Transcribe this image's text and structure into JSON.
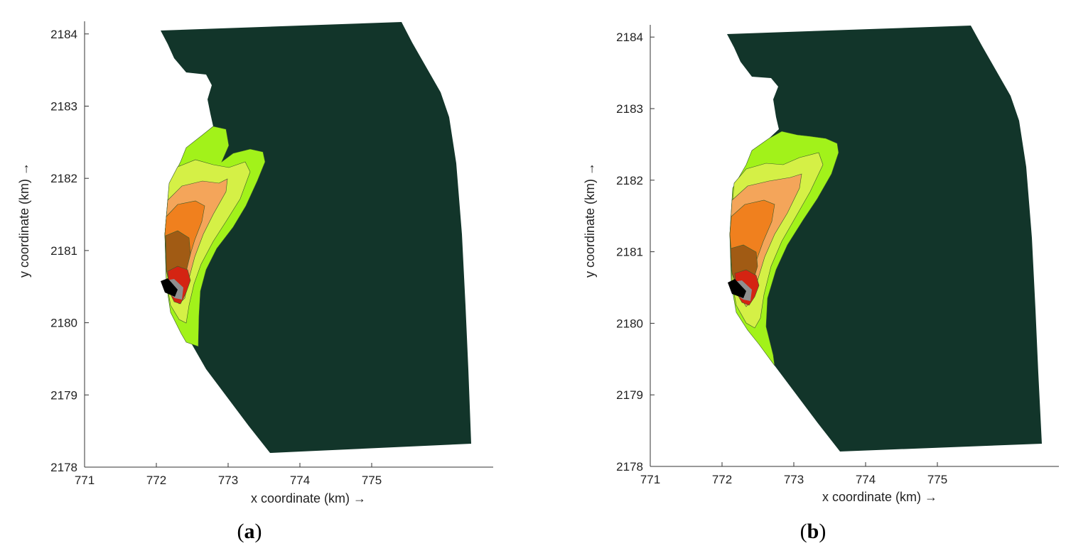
{
  "chart_data": [
    {
      "type": "heatmap",
      "panel_label": "a",
      "xlabel": "x coordinate (km) →",
      "ylabel": "y coordinate (km) →",
      "xlim": [
        771,
        775.5
      ],
      "ylim": [
        2178,
        2184.2
      ],
      "xticks": [
        "771",
        "772",
        "773",
        "774",
        "775"
      ],
      "yticks": [
        "2178",
        "2179",
        "2180",
        "2181",
        "2182",
        "2183",
        "2184"
      ],
      "grid": false,
      "colors": {
        "background": "#12352a",
        "light_green": "#a2f21a",
        "yellow_green": "#d5f046",
        "light_orange": "#f4a55a",
        "orange": "#f0801e",
        "brown": "#a15b14",
        "red": "#d42412",
        "gray": "#8f8f8f",
        "black": "#000000"
      }
    },
    {
      "type": "heatmap",
      "panel_label": "b",
      "xlabel": "x coordinate (km) →",
      "ylabel": "y coordinate (km) →",
      "xlim": [
        771,
        775.5
      ],
      "ylim": [
        2178,
        2184.2
      ],
      "xticks": [
        "771",
        "772",
        "773",
        "774",
        "775"
      ],
      "yticks": [
        "2178",
        "2179",
        "2180",
        "2181",
        "2182",
        "2183",
        "2184"
      ],
      "grid": false,
      "colors": {
        "background": "#12352a",
        "light_green": "#a2f21a",
        "yellow_green": "#d5f046",
        "light_orange": "#f4a55a",
        "orange": "#f0801e",
        "brown": "#a15b14",
        "red": "#d42412",
        "gray": "#8f8f8f",
        "black": "#000000"
      }
    }
  ]
}
